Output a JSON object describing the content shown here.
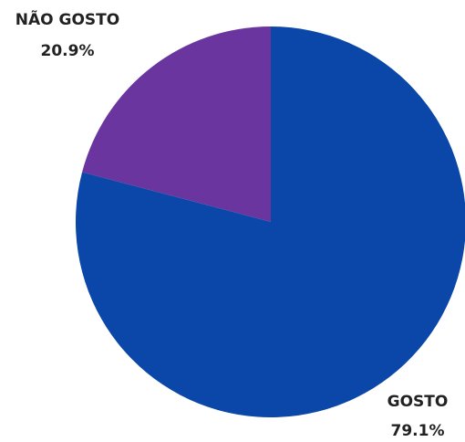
{
  "chart_data": {
    "type": "pie",
    "title": "",
    "slices": [
      {
        "label": "NÃO GOSTO",
        "percent_label": "20.9%",
        "value": 20.9,
        "color": "#6A359E"
      },
      {
        "label": "GOSTO",
        "percent_label": "79.1%",
        "value": 79.1,
        "color": "#0A47A8"
      }
    ],
    "start_angle": "12 o'clock",
    "direction": "counterclockwise"
  }
}
